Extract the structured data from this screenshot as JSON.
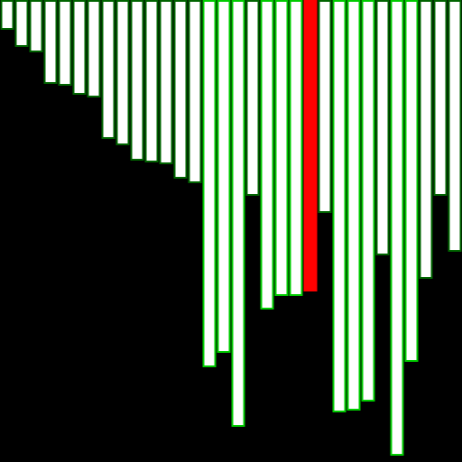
{
  "colors": {
    "background": "#000000",
    "bar_fill": "#ffffff",
    "active_bar_fill": "#ff0000",
    "outline_dark": "#006400",
    "outline_bright": "#00cc00"
  },
  "bars": [
    {
      "value": 32,
      "state": "dark"
    },
    {
      "value": 51,
      "state": "dark"
    },
    {
      "value": 57,
      "state": "dark"
    },
    {
      "value": 92,
      "state": "dark"
    },
    {
      "value": 94,
      "state": "dark"
    },
    {
      "value": 104,
      "state": "dark"
    },
    {
      "value": 107,
      "state": "dark"
    },
    {
      "value": 153,
      "state": "dark"
    },
    {
      "value": 160,
      "state": "dark"
    },
    {
      "value": 177,
      "state": "dark"
    },
    {
      "value": 179,
      "state": "dark"
    },
    {
      "value": 181,
      "state": "dark"
    },
    {
      "value": 197,
      "state": "dark"
    },
    {
      "value": 202,
      "state": "dark"
    },
    {
      "value": 406,
      "state": "bright"
    },
    {
      "value": 390,
      "state": "bright"
    },
    {
      "value": 472,
      "state": "bright"
    },
    {
      "value": 216,
      "state": "dark"
    },
    {
      "value": 342,
      "state": "bright"
    },
    {
      "value": 327,
      "state": "bright"
    },
    {
      "value": 327,
      "state": "bright"
    },
    {
      "value": 322,
      "state": "active"
    },
    {
      "value": 235,
      "state": "dark"
    },
    {
      "value": 456,
      "state": "bright"
    },
    {
      "value": 454,
      "state": "bright"
    },
    {
      "value": 444,
      "state": "bright"
    },
    {
      "value": 282,
      "state": "dark"
    },
    {
      "value": 504,
      "state": "bright"
    },
    {
      "value": 400,
      "state": "bright"
    },
    {
      "value": 308,
      "state": "dark"
    },
    {
      "value": 216,
      "state": "dark"
    },
    {
      "value": 278,
      "state": "dark"
    }
  ]
}
